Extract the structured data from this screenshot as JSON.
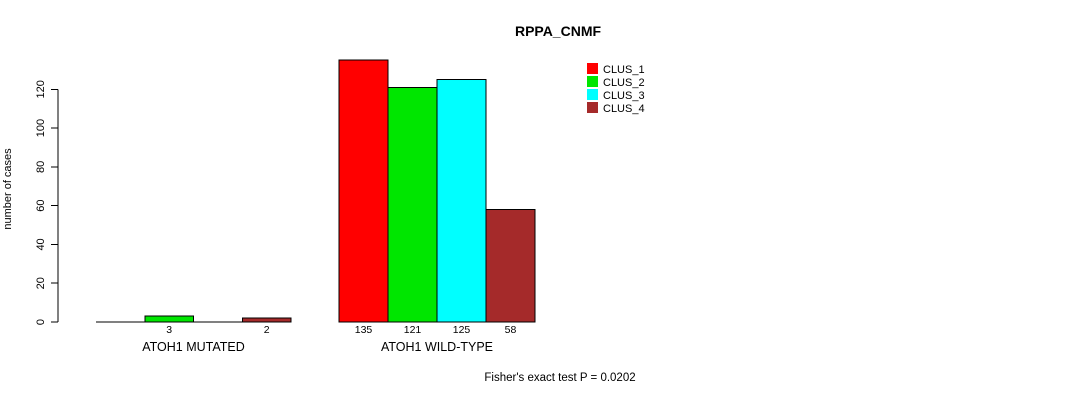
{
  "chart_data": {
    "type": "bar",
    "title": "RPPA_CNMF",
    "subtitle": "Fisher's exact test P = 0.0202",
    "ylabel": "number of cases",
    "xlabel": "",
    "ylim": [
      0,
      135
    ],
    "yticks": [
      0,
      20,
      40,
      60,
      80,
      100,
      120
    ],
    "grid": "off",
    "legend_position": "top-right",
    "categories": [
      "ATOH1 MUTATED",
      "ATOH1 WILD-TYPE"
    ],
    "series": [
      {
        "name": "CLUS_1",
        "color": "#ff0000",
        "values": [
          0,
          135
        ]
      },
      {
        "name": "CLUS_2",
        "color": "#00e600",
        "values": [
          3,
          121
        ]
      },
      {
        "name": "CLUS_3",
        "color": "#00ffff",
        "values": [
          0,
          125
        ]
      },
      {
        "name": "CLUS_4",
        "color": "#a52a2a",
        "values": [
          2,
          58
        ]
      }
    ],
    "bar_value_labels_shown": [
      "3",
      "2",
      "135",
      "121",
      "125",
      "58"
    ]
  }
}
